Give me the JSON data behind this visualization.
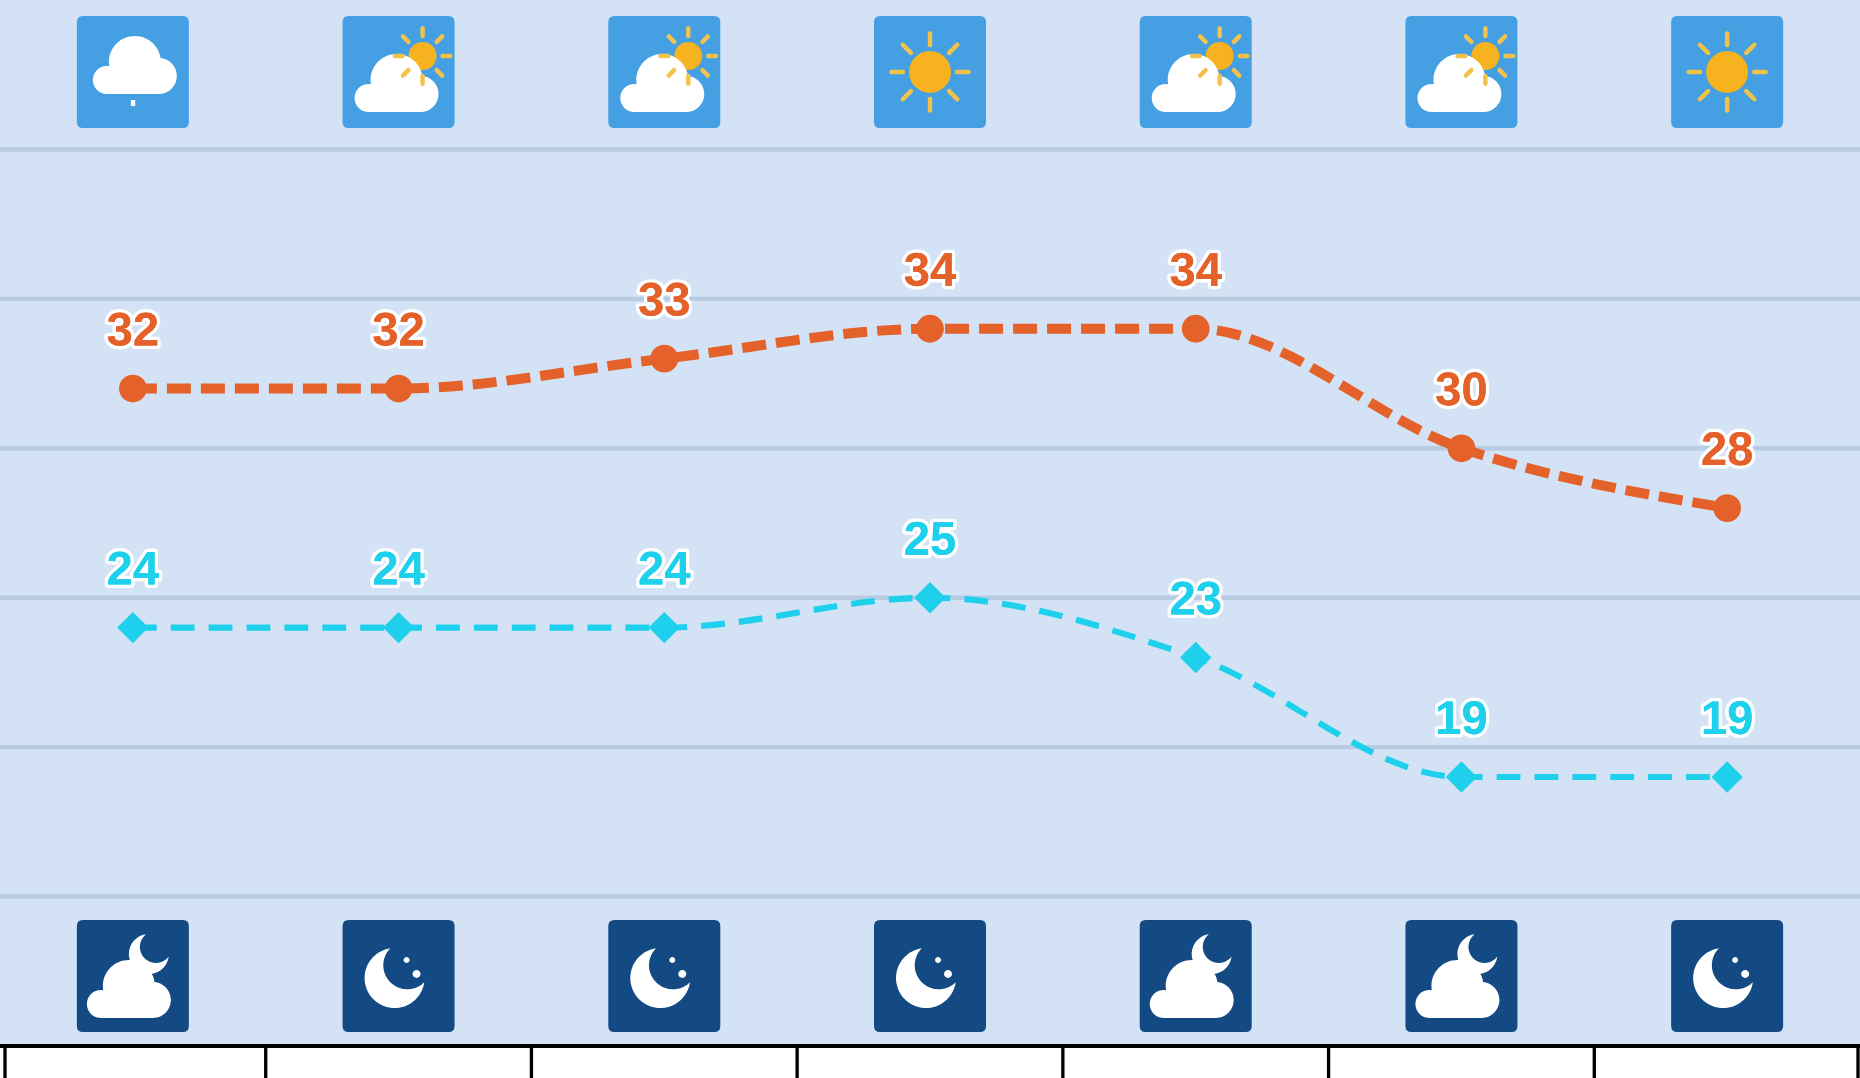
{
  "chart_data": {
    "type": "line",
    "categories": [
      null,
      null,
      null,
      null,
      null,
      null,
      null
    ],
    "series": [
      {
        "color": "#e4622a",
        "values": [
          32,
          32,
          33,
          34,
          34,
          30,
          28
        ],
        "marker": "circle",
        "line_style": "dashed"
      },
      {
        "color": "#1fd0ec",
        "values": [
          24,
          24,
          24,
          25,
          23,
          19,
          19
        ],
        "marker": "diamond",
        "line_style": "dashed"
      }
    ],
    "ylim": [
      10,
      45
    ],
    "yticks": [
      {
        "value": 15,
        "label": null
      },
      {
        "value": 20,
        "label": null
      },
      {
        "value": 25,
        "label": null
      },
      {
        "value": 30,
        "label": null
      },
      {
        "value": 35,
        "label": null
      },
      {
        "value": 40,
        "label": null
      }
    ],
    "grid": "y",
    "data_labels": true
  }
}
